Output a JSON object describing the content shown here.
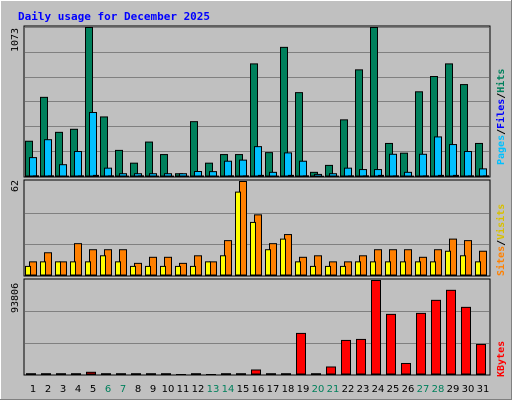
{
  "chart_data": [
    {
      "type": "bar",
      "title": "Daily usage for December 2025",
      "ymax_label": "1073",
      "ylim": [
        0,
        1073
      ],
      "categories": [
        "1",
        "2",
        "3",
        "4",
        "5",
        "6",
        "7",
        "8",
        "9",
        "10",
        "11",
        "12",
        "13",
        "14",
        "15",
        "16",
        "17",
        "18",
        "19",
        "20",
        "21",
        "22",
        "23",
        "24",
        "25",
        "26",
        "27",
        "28",
        "29",
        "30",
        "31"
      ],
      "weekend_days": [
        "6",
        "7",
        "13",
        "14",
        "20",
        "21",
        "27",
        "28"
      ],
      "right_labels": [
        "Pages",
        "/",
        "Files",
        "/",
        "Hits"
      ],
      "series": [
        {
          "name": "Hits",
          "color": "#00805c",
          "values": [
            254,
            570,
            318,
            340,
            1073,
            429,
            188,
            96,
            248,
            158,
            20,
            395,
            96,
            158,
            158,
            811,
            172,
            930,
            604,
            30,
            80,
            408,
            768,
            1073,
            238,
            168,
            610,
            720,
            811,
            662,
            238
          ]
        },
        {
          "name": "Files",
          "color": "#00c0ff",
          "values": [
            136,
            265,
            85,
            180,
            461,
            60,
            20,
            20,
            20,
            20,
            20,
            36,
            35,
            110,
            118,
            215,
            30,
            170,
            110,
            15,
            20,
            60,
            50,
            50,
            160,
            30,
            160,
            285,
            230,
            180,
            55
          ]
        },
        {
          "name": "Pages",
          "color": "#0000ff",
          "values": [
            5,
            5,
            3,
            5,
            8,
            5,
            3,
            5,
            3,
            3,
            3,
            4,
            3,
            5,
            5,
            8,
            3,
            8,
            5,
            2,
            3,
            5,
            5,
            8,
            5,
            3,
            5,
            8,
            8,
            5,
            5
          ]
        }
      ]
    },
    {
      "type": "bar",
      "ymax_label": "62",
      "ylim": [
        0,
        62
      ],
      "categories": [
        "1",
        "2",
        "3",
        "4",
        "5",
        "6",
        "7",
        "8",
        "9",
        "10",
        "11",
        "12",
        "13",
        "14",
        "15",
        "16",
        "17",
        "18",
        "19",
        "20",
        "21",
        "22",
        "23",
        "24",
        "25",
        "26",
        "27",
        "28",
        "29",
        "30",
        "31"
      ],
      "right_labels": [
        "Sites",
        "/",
        "Visits"
      ],
      "series": [
        {
          "name": "Visits",
          "color": "#ff8000",
          "values": [
            9,
            15,
            9,
            21,
            17,
            17,
            17,
            8,
            12,
            12,
            8,
            13,
            9,
            23,
            62,
            40,
            21,
            27,
            12,
            13,
            9,
            9,
            13,
            17,
            17,
            17,
            12,
            17,
            24,
            23,
            16
          ]
        },
        {
          "name": "Sites",
          "color": "#ffff00",
          "values": [
            6,
            9,
            9,
            9,
            9,
            13,
            9,
            6,
            6,
            6,
            6,
            6,
            9,
            13,
            55,
            35,
            17,
            24,
            9,
            6,
            6,
            6,
            9,
            9,
            9,
            9,
            9,
            9,
            16,
            13,
            9
          ]
        }
      ]
    },
    {
      "type": "bar",
      "ymax_label": "93806",
      "ylim": [
        0,
        93806
      ],
      "categories": [
        "1",
        "2",
        "3",
        "4",
        "5",
        "6",
        "7",
        "8",
        "9",
        "10",
        "11",
        "12",
        "13",
        "14",
        "15",
        "16",
        "17",
        "18",
        "19",
        "20",
        "21",
        "22",
        "23",
        "24",
        "25",
        "26",
        "27",
        "28",
        "29",
        "30",
        "31"
      ],
      "right_labels": [
        "KBytes"
      ],
      "series": [
        {
          "name": "KBytes",
          "color": "#ff0000",
          "values": [
            800,
            800,
            800,
            800,
            2200,
            800,
            800,
            800,
            800,
            800,
            0,
            800,
            0,
            800,
            800,
            4500,
            800,
            800,
            41000,
            800,
            7500,
            34000,
            35000,
            93806,
            60000,
            11000,
            61000,
            74000,
            84000,
            67000,
            30000
          ]
        }
      ]
    }
  ]
}
